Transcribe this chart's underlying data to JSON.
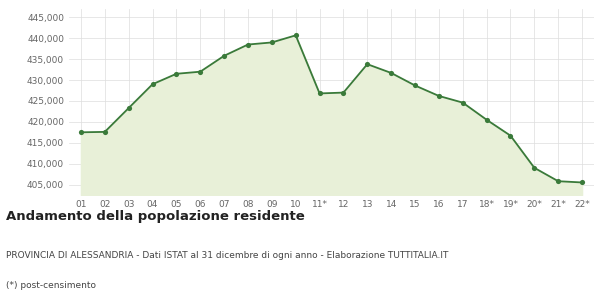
{
  "x_labels": [
    "01",
    "02",
    "03",
    "04",
    "05",
    "06",
    "07",
    "08",
    "09",
    "10",
    "11*",
    "12",
    "13",
    "14",
    "15",
    "16",
    "17",
    "18*",
    "19*",
    "20*",
    "21*",
    "22*"
  ],
  "values": [
    417500,
    417600,
    423300,
    429000,
    431500,
    432000,
    435800,
    438500,
    439000,
    440700,
    426800,
    427000,
    433800,
    431700,
    428700,
    426200,
    424600,
    420500,
    416700,
    409000,
    405800,
    405500
  ],
  "line_color": "#3a7a3a",
  "fill_color": "#e8f0d8",
  "marker_color": "#3a7a3a",
  "bg_color": "#ffffff",
  "grid_color": "#dddddd",
  "ylim_min": 402500,
  "ylim_max": 447000,
  "yticks": [
    405000,
    410000,
    415000,
    420000,
    425000,
    430000,
    435000,
    440000,
    445000
  ],
  "title": "Andamento della popolazione residente",
  "subtitle": "PROVINCIA DI ALESSANDRIA - Dati ISTAT al 31 dicembre di ogni anno - Elaborazione TUTTITALIA.IT",
  "footnote": "(*) post-censimento",
  "title_fontsize": 9.5,
  "subtitle_fontsize": 6.5,
  "footnote_fontsize": 6.5,
  "tick_fontsize": 6.5
}
